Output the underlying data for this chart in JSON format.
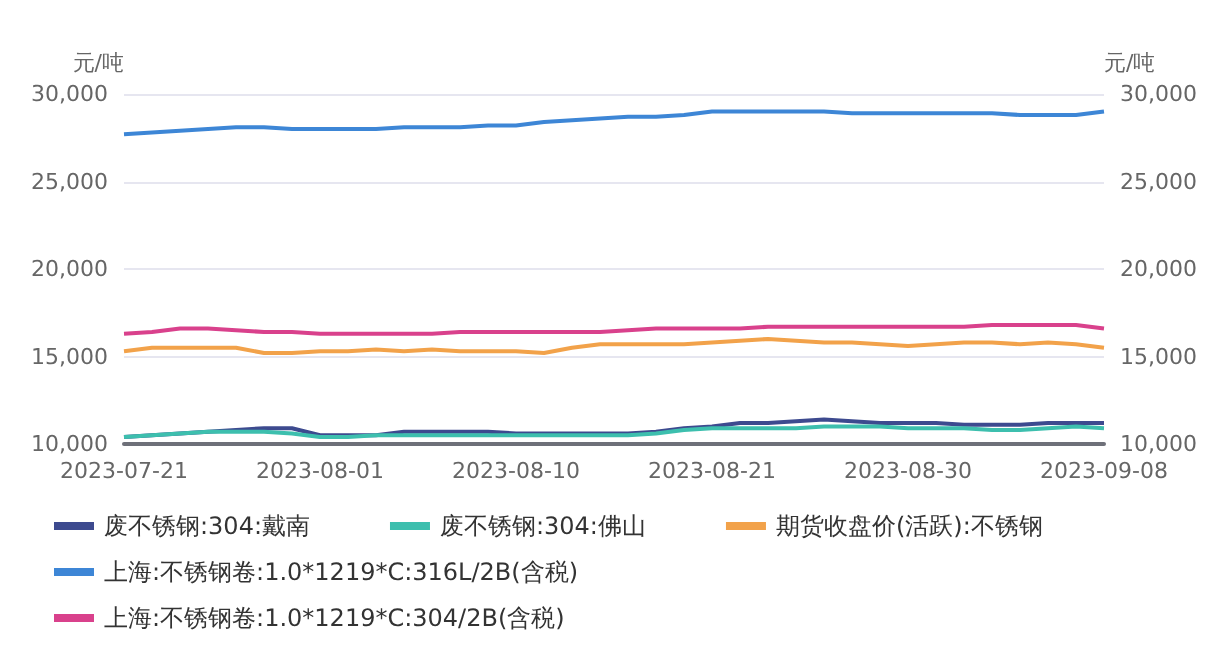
{
  "chart_data": {
    "type": "line",
    "ylabel": "元/吨",
    "y2label": "元/吨",
    "categories": [
      "2023-07-21",
      null,
      null,
      null,
      null,
      null,
      null,
      "2023-08-01",
      null,
      null,
      null,
      null,
      null,
      null,
      "2023-08-10",
      null,
      null,
      null,
      null,
      null,
      null,
      "2023-08-21",
      null,
      null,
      null,
      null,
      null,
      null,
      "2023-08-30",
      null,
      null,
      null,
      null,
      null,
      null,
      "2023-09-08"
    ],
    "series": [
      {
        "name": "废不锈钢:304:戴南",
        "color": "#3d4a8f",
        "values": [
          10400,
          10500,
          10600,
          10700,
          10800,
          10900,
          10900,
          10500,
          10500,
          10500,
          10700,
          10700,
          10700,
          10700,
          10600,
          10600,
          10600,
          10600,
          10600,
          10700,
          10900,
          11000,
          11200,
          11200,
          11300,
          11400,
          11300,
          11200,
          11200,
          11200,
          11100,
          11100,
          11100,
          11200,
          11200,
          11200
        ]
      },
      {
        "name": "废不锈钢:304:佛山",
        "color": "#3dbfae",
        "values": [
          10400,
          10500,
          10600,
          10700,
          10700,
          10700,
          10600,
          10400,
          10400,
          10500,
          10500,
          10500,
          10500,
          10500,
          10500,
          10500,
          10500,
          10500,
          10500,
          10600,
          10800,
          10900,
          10900,
          10900,
          10900,
          11000,
          11000,
          11000,
          10900,
          10900,
          10900,
          10800,
          10800,
          10900,
          11000,
          10900
        ]
      },
      {
        "name": "期货收盘价(活跃):不锈钢",
        "color": "#f2a24a",
        "values": [
          15300,
          15500,
          15500,
          15500,
          15500,
          15200,
          15200,
          15300,
          15300,
          15400,
          15300,
          15400,
          15300,
          15300,
          15300,
          15200,
          15500,
          15700,
          15700,
          15700,
          15700,
          15800,
          15900,
          16000,
          15900,
          15800,
          15800,
          15700,
          15600,
          15700,
          15800,
          15800,
          15700,
          15800,
          15700,
          15500
        ]
      },
      {
        "name": "上海:不锈钢卷:1.0*1219*C:316L/2B(含税)",
        "color": "#3d86d6",
        "values": [
          27700,
          27800,
          27900,
          28000,
          28100,
          28100,
          28000,
          28000,
          28000,
          28000,
          28100,
          28100,
          28100,
          28200,
          28200,
          28400,
          28500,
          28600,
          28700,
          28700,
          28800,
          29000,
          29000,
          29000,
          29000,
          29000,
          28900,
          28900,
          28900,
          28900,
          28900,
          28900,
          28800,
          28800,
          28800,
          29000
        ]
      },
      {
        "name": "上海:不锈钢卷:1.0*1219*C:304/2B(含税)",
        "color": "#d9418c",
        "values": [
          16300,
          16400,
          16600,
          16600,
          16500,
          16400,
          16400,
          16300,
          16300,
          16300,
          16300,
          16300,
          16400,
          16400,
          16400,
          16400,
          16400,
          16400,
          16500,
          16600,
          16600,
          16600,
          16600,
          16700,
          16700,
          16700,
          16700,
          16700,
          16700,
          16700,
          16700,
          16800,
          16800,
          16800,
          16800,
          16600
        ]
      }
    ],
    "ylim": [
      10000,
      30000
    ],
    "yticks": [
      {
        "value": 10000,
        "label": "10,000"
      },
      {
        "value": 15000,
        "label": "15,000"
      },
      {
        "value": 20000,
        "label": "20,000"
      },
      {
        "value": 25000,
        "label": "25,000"
      },
      {
        "value": 30000,
        "label": "30,000"
      }
    ],
    "y2lim": [
      10000,
      30000
    ],
    "y2ticks": [
      {
        "value": 10000,
        "label": "10,000"
      },
      {
        "value": 15000,
        "label": "15,000"
      },
      {
        "value": 20000,
        "label": "20,000"
      },
      {
        "value": 25000,
        "label": "25,000"
      },
      {
        "value": 30000,
        "label": "30,000"
      }
    ],
    "grid": "y",
    "legend": "bottom",
    "marker": "none",
    "line_style": "solid"
  }
}
